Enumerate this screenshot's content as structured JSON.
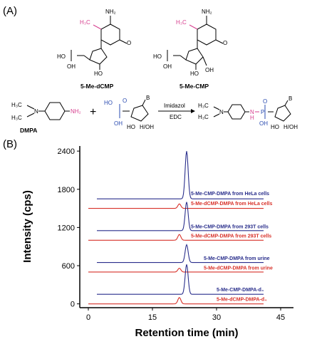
{
  "panel_a": {
    "label": "(A)",
    "compounds": [
      {
        "name": "5-Me-dCMP",
        "methyl_label": "H₃C",
        "amine_label": "NH₂",
        "phosphate_labels": [
          "O",
          "HO",
          "OH"
        ],
        "sugar_oh": "HO"
      },
      {
        "name": "5-Me-CMP",
        "methyl_label": "H₃C",
        "amine_label": "NH₂",
        "phosphate_labels": [
          "O",
          "HO",
          "OH"
        ],
        "sugar_oh": "HO",
        "sugar_oh2": "OH"
      }
    ],
    "reaction": {
      "reagent_name": "DMPA",
      "reagent_methyls": [
        "H₃C",
        "H₃C"
      ],
      "reagent_n": "N",
      "reagent_amine": "NH₂",
      "plus": "+",
      "phosphate_labels": [
        "HO",
        "O",
        "OH"
      ],
      "base_label": "B",
      "sugar_labels": [
        "HO",
        "H/OH"
      ],
      "arrow_top": "Imidazol",
      "arrow_bottom": "EDC",
      "product_methyls": [
        "H₃C",
        "H₃C"
      ],
      "product_n": "N",
      "product_nh": "N",
      "product_h": "H",
      "product_p_labels": [
        "O",
        "P",
        "OH"
      ],
      "product_base": "B",
      "product_sugar": [
        "HO",
        "H/OH"
      ]
    }
  },
  "panel_b": {
    "label": "(B)",
    "colors": {
      "blue": "#2a2f8c",
      "red": "#d8322a",
      "pink": "#d63d8e",
      "phosphate_blue": "#2a4bb0"
    }
  },
  "chart_data": {
    "type": "line",
    "xlabel": "Retention time (min)",
    "ylabel": "Intensity (cps)",
    "xlim": [
      -2,
      48
    ],
    "ylim": [
      -60,
      2480
    ],
    "x_ticks": [
      0,
      15,
      30,
      45
    ],
    "y_ticks": [
      0,
      600,
      1200,
      1800,
      2400
    ],
    "series": [
      {
        "name": "5-Me-CMP-DMPA from HeLa cells",
        "color": "#2a2f8c",
        "baseline": 1650,
        "x_start": 2,
        "x_end": 41,
        "peak_x": 23.0,
        "peak_height": 750,
        "label_x": 24,
        "label_y": 1710
      },
      {
        "name": "5-Me-dCMP-DMPA from HeLa cells",
        "color": "#d8322a",
        "baseline": 1500,
        "x_start": 0,
        "x_end": 41,
        "peak_x": 21.3,
        "peak_height": 70,
        "label_x": 24,
        "label_y": 1550
      },
      {
        "name": "5-Me-CMP-DMPA from 293T cells",
        "color": "#2a2f8c",
        "baseline": 1150,
        "x_start": 2,
        "x_end": 41,
        "peak_x": 23.0,
        "peak_height": 450,
        "label_x": 24,
        "label_y": 1190
      },
      {
        "name": "5-Me-dCMP-DMPA from 293T cells",
        "color": "#d8322a",
        "baseline": 1000,
        "x_start": 0,
        "x_end": 41,
        "peak_x": 21.3,
        "peak_height": 90,
        "label_x": 24,
        "label_y": 1040
      },
      {
        "name": "5-Me-CMP-DMPA from urine",
        "color": "#2a2f8c",
        "baseline": 650,
        "x_start": 2,
        "x_end": 41,
        "peak_x": 23.0,
        "peak_height": 280,
        "label_x": 27,
        "label_y": 690
      },
      {
        "name": "5-Me-dCMP-DMPA from urine",
        "color": "#d8322a",
        "baseline": 500,
        "x_start": 0,
        "x_end": 41,
        "peak_x": 21.3,
        "peak_height": 60,
        "label_x": 27,
        "label_y": 540
      },
      {
        "name": "5-Me-CMP-DMPA-d₄",
        "color": "#2a2f8c",
        "baseline": 150,
        "x_start": 2,
        "x_end": 41,
        "peak_x": 23.0,
        "peak_height": 470,
        "label_x": 30,
        "label_y": 195
      },
      {
        "name": "5-Me-dCMP-DMPA-d₄",
        "color": "#d8322a",
        "baseline": 0,
        "x_start": 0,
        "x_end": 41,
        "peak_x": 21.3,
        "peak_height": 100,
        "label_x": 30,
        "label_y": 45
      }
    ]
  }
}
